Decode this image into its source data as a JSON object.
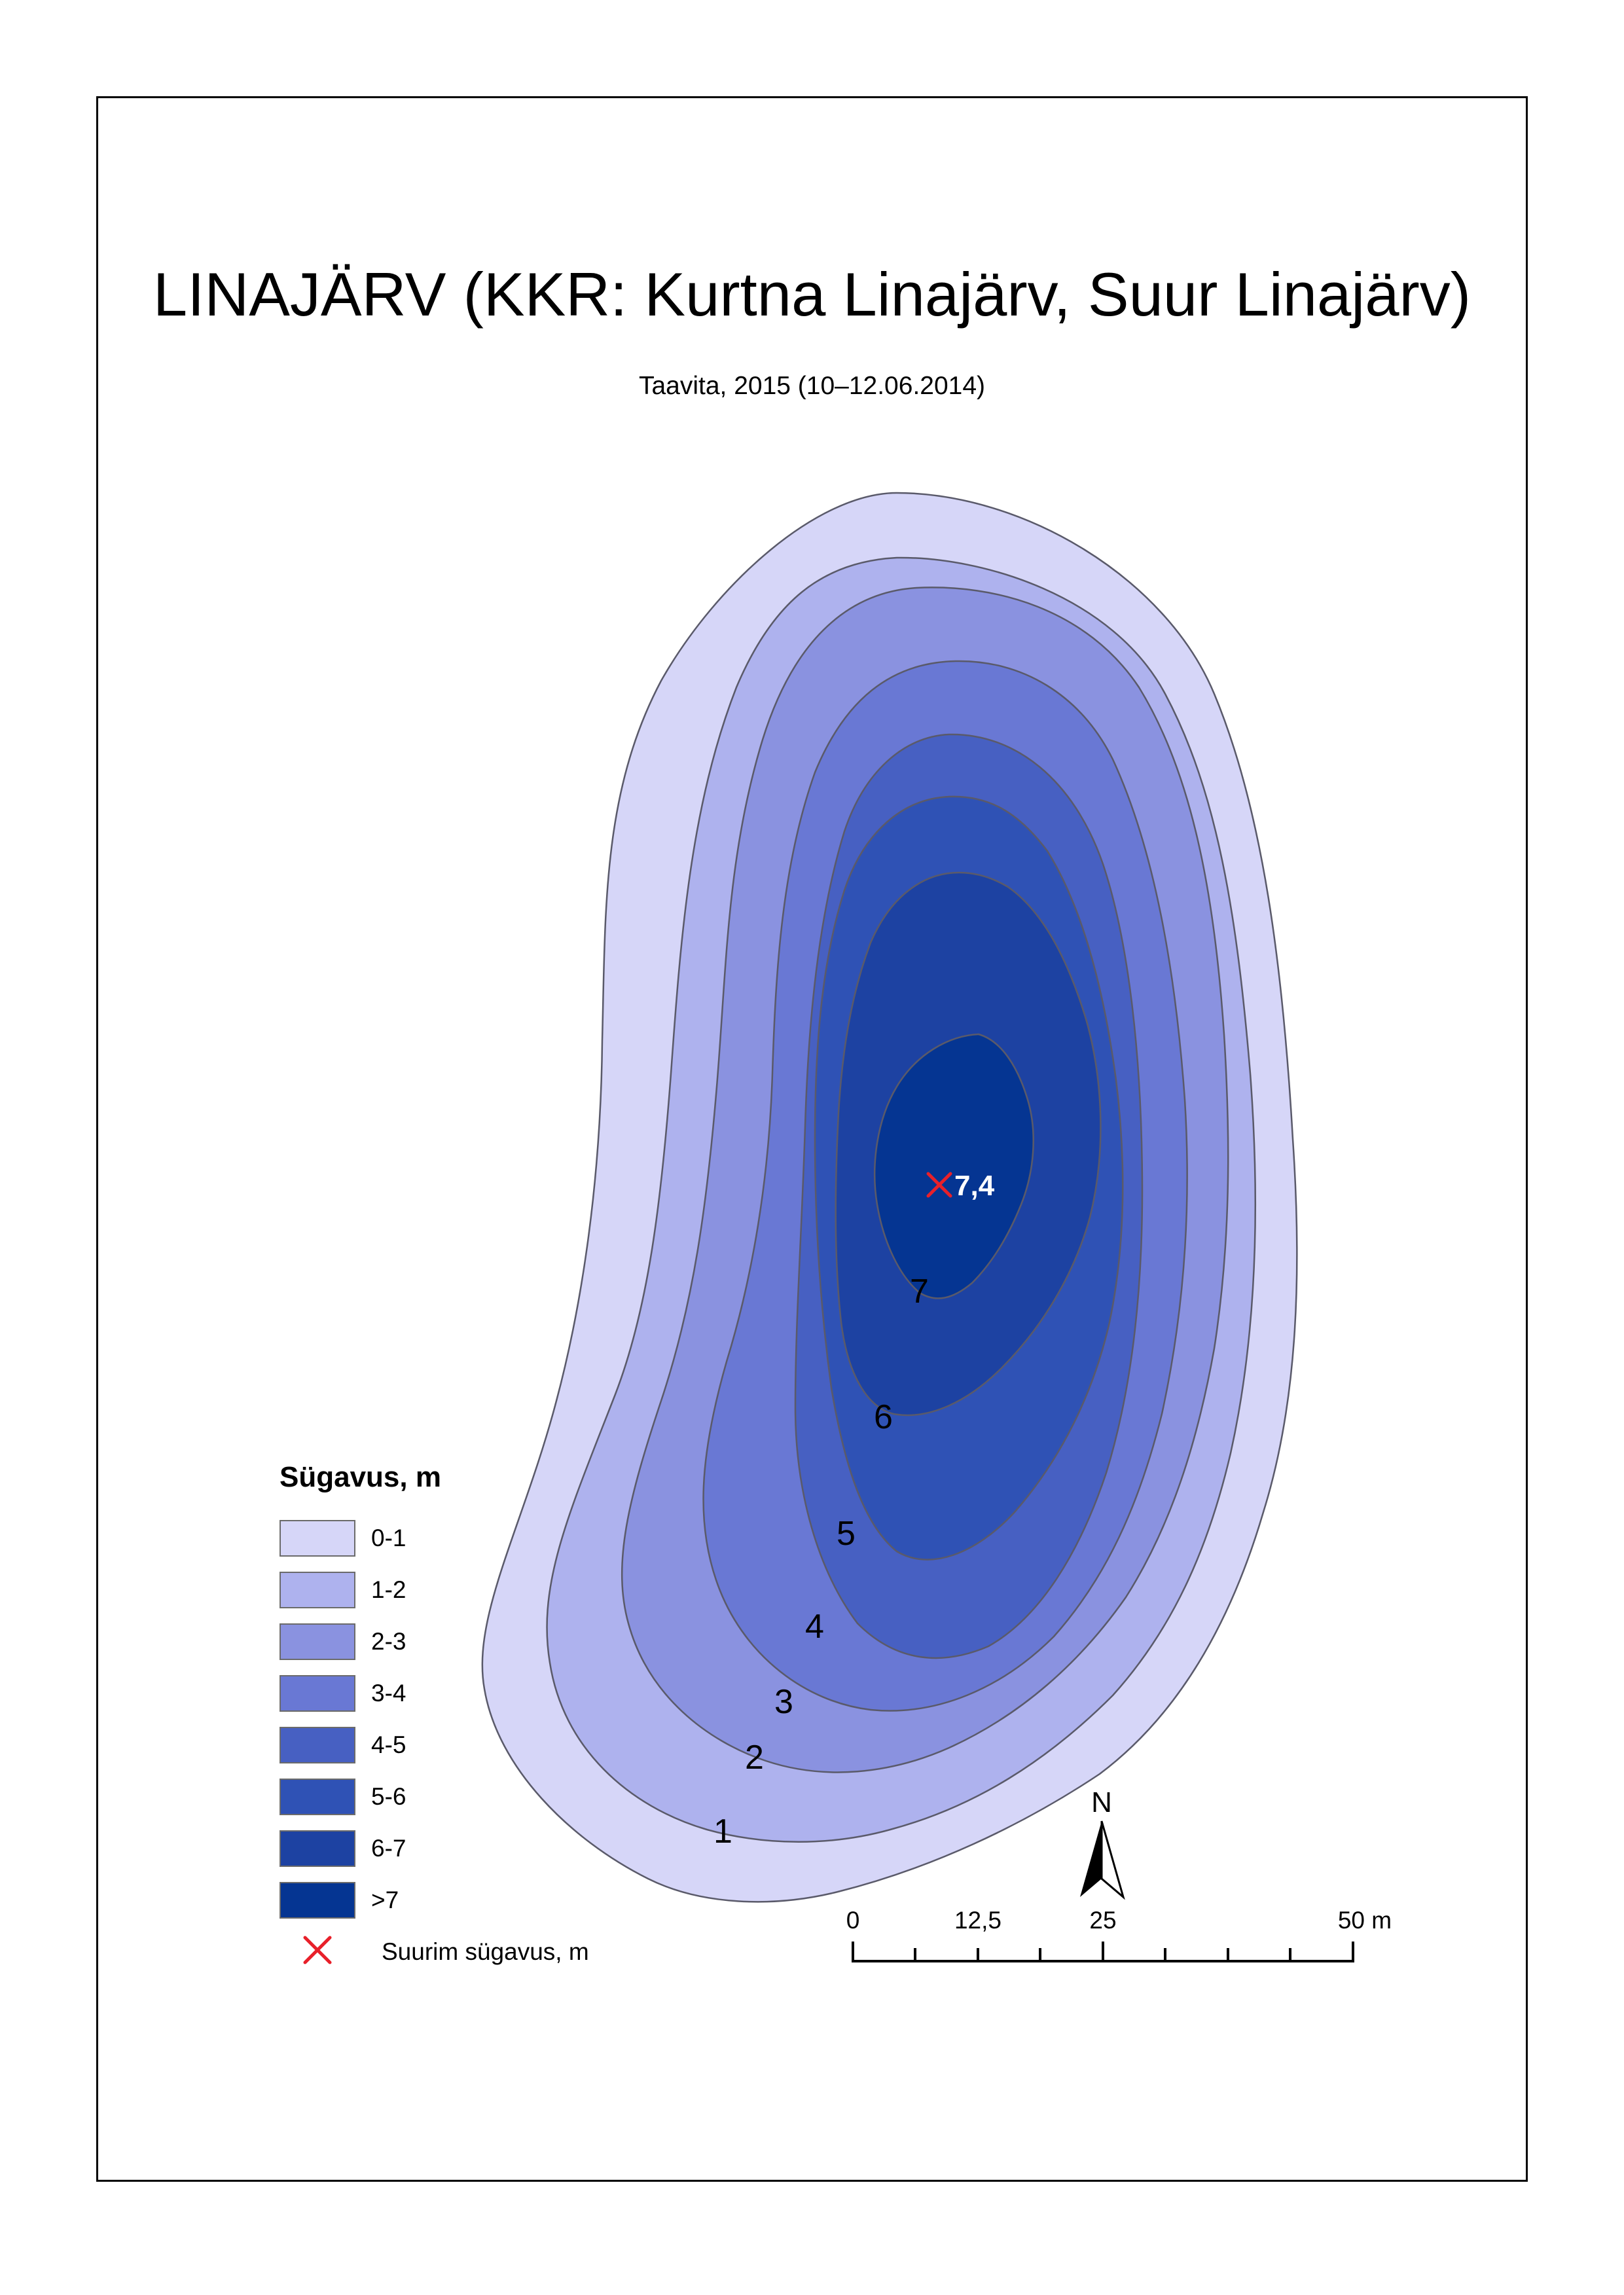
{
  "title": "LINAJÄRV (KKR: Kurtna Linajärv, Suur Linajärv)",
  "subtitle": "Taavita, 2015 (10–12.06.2014)",
  "legend": {
    "title": "Sügavus, m",
    "classes": [
      {
        "label": "0-1",
        "color": "#d6d6f8"
      },
      {
        "label": "1-2",
        "color": "#aeb2ee"
      },
      {
        "label": "2-3",
        "color": "#8a92e0"
      },
      {
        "label": "3-4",
        "color": "#6978d4"
      },
      {
        "label": "4-5",
        "color": "#4760c2"
      },
      {
        "label": "5-6",
        "color": "#2f52b5"
      },
      {
        "label": "6-7",
        "color": "#1d42a2"
      },
      {
        "label": ">7",
        "color": "#053592"
      }
    ],
    "max_depth_label": "Suurim sügavus, m"
  },
  "contour_labels": [
    "1",
    "2",
    "3",
    "4",
    "5",
    "6",
    "7"
  ],
  "max_depth": {
    "value": "7,4",
    "marker_color": "#e8202a"
  },
  "north_arrow": {
    "label": "N"
  },
  "scale_bar": {
    "ticks": [
      "0",
      "12,5",
      "25",
      "50 m"
    ]
  }
}
